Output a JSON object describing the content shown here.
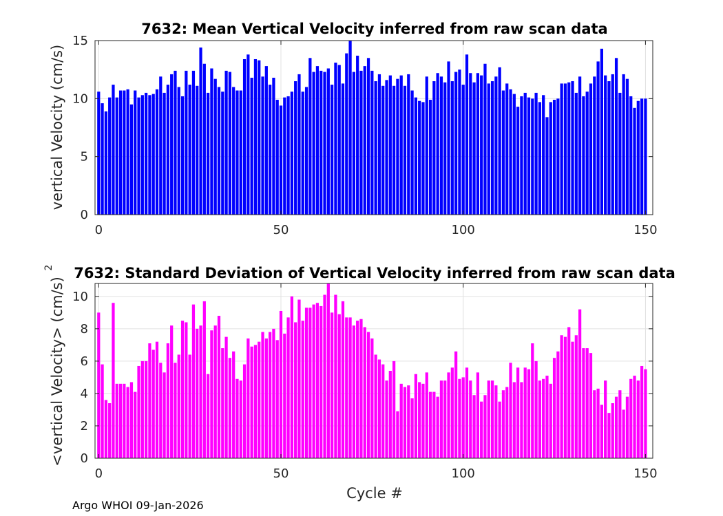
{
  "chart_data": [
    {
      "type": "bar",
      "title": "7632: Mean Vertical Velocity inferred from raw scan data",
      "xlabel": "",
      "ylabel": "vertical Velocity (cm/s)",
      "xlim": [
        -1,
        152
      ],
      "ylim": [
        0,
        15
      ],
      "xticks": [
        0,
        50,
        100,
        150
      ],
      "yticks": [
        0,
        5,
        10,
        15
      ],
      "grid": true,
      "color": "#0000ff",
      "values": [
        10.6,
        9.6,
        8.9,
        10.1,
        11.2,
        10.1,
        10.7,
        10.7,
        10.8,
        9.5,
        10.7,
        10.1,
        10.3,
        10.5,
        10.3,
        10.4,
        10.8,
        11.9,
        10.5,
        11.2,
        12.1,
        12.4,
        11.0,
        10.2,
        12.4,
        11.2,
        12.4,
        11.1,
        14.4,
        13.0,
        10.5,
        12.6,
        11.7,
        11.0,
        10.6,
        12.4,
        12.3,
        11.0,
        10.7,
        10.7,
        13.4,
        13.8,
        11.8,
        13.4,
        13.3,
        11.9,
        12.8,
        11.2,
        11.8,
        9.9,
        9.4,
        10.1,
        10.2,
        10.6,
        11.5,
        12.1,
        10.6,
        11.0,
        13.5,
        12.3,
        12.8,
        12.4,
        12.3,
        12.6,
        11.2,
        13.1,
        12.9,
        11.3,
        13.9,
        15.3,
        12.3,
        13.7,
        12.4,
        12.8,
        13.5,
        12.4,
        11.5,
        12.1,
        11.1,
        11.6,
        12.0,
        11.1,
        11.7,
        12.0,
        11.1,
        12.1,
        10.7,
        10.1,
        9.8,
        9.7,
        11.9,
        9.9,
        11.5,
        12.2,
        11.9,
        11.4,
        13.2,
        11.5,
        12.3,
        12.5,
        11.2,
        13.8,
        12.2,
        11.4,
        12.2,
        12.0,
        13.0,
        11.3,
        11.5,
        11.9,
        12.7,
        10.7,
        11.3,
        10.8,
        10.4,
        9.3,
        10.2,
        10.5,
        10.1,
        10.0,
        10.5,
        9.7,
        10.3,
        8.4,
        9.7,
        9.9,
        10.0,
        11.3,
        11.3,
        11.4,
        11.5,
        10.5,
        11.9,
        10.2,
        10.6,
        11.3,
        11.9,
        13.2,
        14.3,
        12.0,
        11.5,
        12.1,
        13.5,
        10.5,
        12.1,
        11.7,
        10.2,
        9.2,
        9.8,
        10.0,
        10.0
      ]
    },
    {
      "type": "bar",
      "title": "7632: Standard Deviation of Vertical Velocity inferred from raw scan data",
      "xlabel": "Cycle #",
      "ylabel": "<vertical Velocity> (cm/s)",
      "ylabel_superscript": "2",
      "xlim": [
        -1,
        152
      ],
      "ylim": [
        0,
        10.8
      ],
      "xticks": [
        0,
        50,
        100,
        150
      ],
      "yticks": [
        0,
        2,
        4,
        6,
        8,
        10
      ],
      "grid": true,
      "color": "#ff00ff",
      "values": [
        9.0,
        5.8,
        3.6,
        3.4,
        9.6,
        4.6,
        4.6,
        4.6,
        4.4,
        4.7,
        4.1,
        5.7,
        6.0,
        6.0,
        7.1,
        6.7,
        7.2,
        5.9,
        5.3,
        7.1,
        8.2,
        5.9,
        6.4,
        8.5,
        8.4,
        6.4,
        9.5,
        8.0,
        8.2,
        9.7,
        5.2,
        7.9,
        8.2,
        8.8,
        6.8,
        7.5,
        6.2,
        6.6,
        4.9,
        4.8,
        5.8,
        7.4,
        6.9,
        7.0,
        7.2,
        7.8,
        7.4,
        7.8,
        8.0,
        7.3,
        9.1,
        7.7,
        8.7,
        10.0,
        8.4,
        9.8,
        8.5,
        9.3,
        9.3,
        9.5,
        9.6,
        9.4,
        10.1,
        10.8,
        9.0,
        10.1,
        8.9,
        9.7,
        8.7,
        8.7,
        8.2,
        8.5,
        8.6,
        8.1,
        7.8,
        7.4,
        6.4,
        6.1,
        5.8,
        4.8,
        5.4,
        6.0,
        2.9,
        4.6,
        4.4,
        4.5,
        3.7,
        5.2,
        4.7,
        4.6,
        5.3,
        4.1,
        4.1,
        3.8,
        4.8,
        4.8,
        5.3,
        5.6,
        6.6,
        4.9,
        5.0,
        5.6,
        4.8,
        3.9,
        5.3,
        3.5,
        3.9,
        4.8,
        4.8,
        4.5,
        3.5,
        4.2,
        4.4,
        5.9,
        4.7,
        5.6,
        4.7,
        5.6,
        5.5,
        7.1,
        6.0,
        4.8,
        4.9,
        5.1,
        4.6,
        6.2,
        6.6,
        7.6,
        7.5,
        8.1,
        7.2,
        7.6,
        9.2,
        6.8,
        6.8,
        6.5,
        4.2,
        4.3,
        3.3,
        4.8,
        2.8,
        3.4,
        3.8,
        4.2,
        3.0,
        3.8,
        4.9,
        5.1,
        4.8,
        5.7,
        5.5
      ]
    }
  ],
  "footer": "Argo WHOI 09-Jan-2026"
}
